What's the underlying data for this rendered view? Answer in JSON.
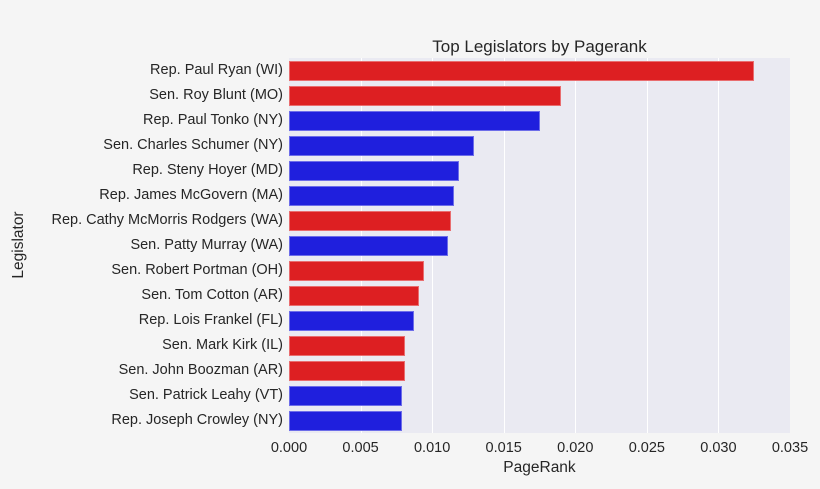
{
  "chart_data": {
    "type": "bar",
    "orientation": "horizontal",
    "title": "Top Legislators by Pagerank",
    "xlabel": "PageRank",
    "ylabel": "Legislator",
    "xlim": [
      0,
      0.035
    ],
    "xticks": [
      "0.000",
      "0.005",
      "0.010",
      "0.015",
      "0.020",
      "0.025",
      "0.030",
      "0.035"
    ],
    "grid": true,
    "categories": [
      "Rep. Paul Ryan (WI)",
      "Sen. Roy Blunt (MO)",
      "Rep. Paul Tonko (NY)",
      "Sen. Charles Schumer (NY)",
      "Rep. Steny Hoyer (MD)",
      "Rep. James McGovern (MA)",
      "Rep. Cathy McMorris Rodgers (WA)",
      "Sen. Patty Murray (WA)",
      "Sen. Robert Portman (OH)",
      "Sen. Tom Cotton (AR)",
      "Rep. Lois Frankel (FL)",
      "Sen. Mark Kirk (IL)",
      "Sen. John Boozman (AR)",
      "Sen. Patrick Leahy (VT)",
      "Rep. Joseph Crowley (NY)"
    ],
    "values": [
      0.0325,
      0.019,
      0.0175,
      0.0129,
      0.0119,
      0.0115,
      0.0113,
      0.0111,
      0.0094,
      0.0091,
      0.0087,
      0.0081,
      0.0081,
      0.0079,
      0.0079
    ],
    "bar_colors": [
      "red",
      "red",
      "blue",
      "blue",
      "blue",
      "blue",
      "red",
      "blue",
      "red",
      "red",
      "blue",
      "red",
      "red",
      "blue",
      "blue"
    ]
  },
  "colors": {
    "red": "#dd1f22",
    "blue": "#1f1fdd",
    "plot_bg": "#eaeaf2",
    "page_bg": "#f5f5f5"
  }
}
